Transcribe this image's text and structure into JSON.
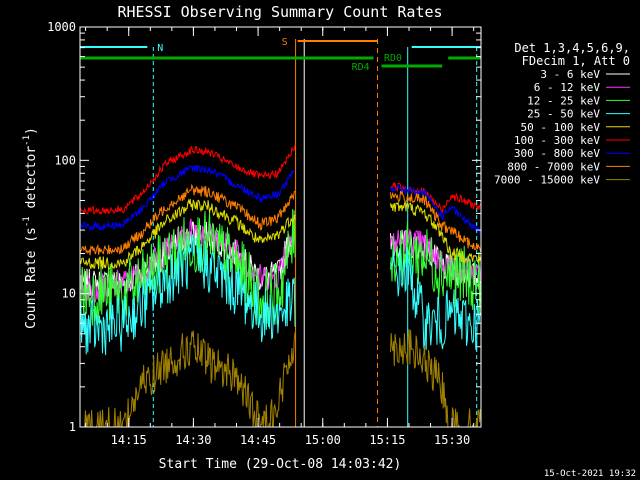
{
  "chart_data": {
    "type": "line",
    "title": "RHESSI Observing Summary Count Rates",
    "xlabel": "Start Time (29-Oct-08 14:03:42)",
    "ylabel_main": "Count Rate (s",
    "ylabel_sup1": "-1",
    "ylabel_mid": " detector",
    "ylabel_sup2": "-1",
    "ylabel_end": ")",
    "yscale": "log",
    "ylim": [
      1,
      1000
    ],
    "y_ticks": [
      1,
      10,
      100,
      1000
    ],
    "y_tick_labels": [
      "1",
      "10",
      "100",
      "1000"
    ],
    "xlim_minutes": [
      0,
      93
    ],
    "x_ticks_minutes": [
      11.3,
      26.3,
      41.3,
      56.3,
      71.3,
      86.3
    ],
    "x_tick_labels": [
      "14:15",
      "14:30",
      "14:45",
      "15:00",
      "15:15",
      "15:30"
    ],
    "legend": {
      "header_line1": "Det 1,3,4,5,6,9,",
      "header_line2": "FDecim 1, Att 0",
      "placement": "right"
    },
    "series": [
      {
        "name": "3 - 6 keV",
        "color": "#ffffff",
        "values": [
          12,
          12,
          12,
          14,
          20,
          28,
          27,
          20,
          13,
          14,
          35,
          null,
          null,
          23,
          24,
          22,
          16,
          15,
          14,
          13
        ],
        "noise": 1.8
      },
      {
        "name": "6 - 12 keV",
        "color": "#ff33ff",
        "values": [
          11,
          11,
          12,
          14,
          21,
          30,
          28,
          21,
          13,
          14,
          38,
          null,
          null,
          24,
          25,
          23,
          17,
          16,
          15,
          14
        ],
        "noise": 1.8
      },
      {
        "name": "12 - 25 keV",
        "color": "#33ff33",
        "values": [
          10,
          10,
          10,
          12,
          18,
          25,
          24,
          17,
          9,
          10,
          30,
          null,
          null,
          20,
          20,
          19,
          15,
          14,
          13,
          12
        ],
        "noise": 1.6
      },
      {
        "name": "25 - 50 keV",
        "color": "#33ffff",
        "values": [
          5.5,
          5.5,
          6,
          8,
          13,
          18,
          16,
          11,
          7,
          7,
          9,
          null,
          null,
          14,
          15,
          6,
          6,
          7,
          6,
          6
        ],
        "noise": 1.4
      },
      {
        "name": "50 - 100 keV",
        "color": "#dddd00",
        "values": [
          17,
          17,
          17,
          22,
          35,
          47,
          45,
          35,
          24,
          28,
          40,
          null,
          null,
          45,
          45,
          40,
          28,
          20,
          19,
          18
        ],
        "noise": 0.8
      },
      {
        "name": "100 - 300 keV",
        "color": "#ff0000",
        "values": [
          42,
          42,
          43,
          55,
          95,
          120,
          115,
          90,
          75,
          80,
          130,
          null,
          null,
          65,
          62,
          58,
          42,
          55,
          48,
          44
        ],
        "noise": 0.5
      },
      {
        "name": "300 - 800 keV",
        "color": "#0000ff",
        "values": [
          32,
          32,
          33,
          42,
          70,
          88,
          85,
          66,
          52,
          56,
          85,
          null,
          null,
          62,
          60,
          56,
          38,
          44,
          34,
          30
        ],
        "noise": 0.5
      },
      {
        "name": "800 - 7000 keV",
        "color": "#ff7f00",
        "values": [
          21,
          21,
          22,
          28,
          45,
          60,
          58,
          45,
          33,
          37,
          60,
          null,
          null,
          54,
          53,
          50,
          32,
          30,
          24,
          21
        ],
        "noise": 0.7
      },
      {
        "name": "7000 - 15000 keV",
        "color": "#a08000",
        "values": [
          1,
          1,
          1,
          2,
          3,
          4,
          3,
          2.5,
          1,
          1.5,
          5,
          null,
          null,
          4,
          4,
          3,
          2,
          1,
          1,
          1
        ],
        "noise": 2.5
      }
    ],
    "x_minutes_samples": [
      0,
      5,
      10,
      14,
      20,
      26,
      30,
      36,
      42,
      46,
      50,
      52,
      68,
      72,
      76,
      80,
      84,
      86,
      90,
      93
    ],
    "flags": {
      "n_label": "N",
      "s_label": "S",
      "rd0_label": "RD0",
      "rd4_label": "RD4",
      "cyan_lines_minutes": [
        0,
        17,
        76,
        92
      ],
      "orange_solid_minutes": [
        50
      ],
      "orange_dash_minutes": [
        69
      ],
      "white_line_minutes": [
        52
      ]
    },
    "timestamp": "15-Oct-2021 19:32"
  }
}
